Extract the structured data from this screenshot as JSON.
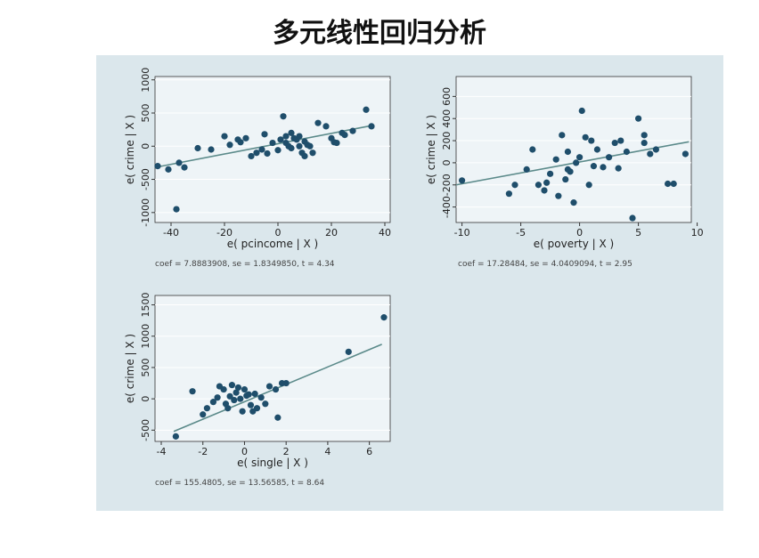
{
  "title": "多元线性回归分析",
  "colors": {
    "panel_bg": "#dbe7ec",
    "plot_bg": "#eef4f7",
    "point": "#1f4e6b",
    "fit_line": "#5b8a8a",
    "grid": "#ffffff",
    "axis": "#333333"
  },
  "chart_data": [
    {
      "type": "scatter",
      "xlabel": "e( pcincome | X )",
      "ylabel": "e( crime | X )",
      "note": "coef = 7.8883908, se = 1.8349850, t = 4.34",
      "xlim": [
        -46,
        42
      ],
      "ylim": [
        -1150,
        1050
      ],
      "xticks": [
        -40,
        -20,
        0,
        20,
        40
      ],
      "yticks": [
        -1000,
        -500,
        0,
        500,
        1000
      ],
      "ytick_labels": [
        "-1000",
        "-500",
        "0",
        "500",
        "1000"
      ],
      "grid": true,
      "fit": {
        "x": [
          -46,
          35
        ],
        "y": [
          -320,
          310
        ]
      },
      "points": {
        "x": [
          -45,
          -41,
          -38,
          -37,
          -35,
          -30,
          -25,
          -20,
          -18,
          -15,
          -14,
          -12,
          -10,
          -8,
          -6,
          -5,
          -4,
          -2,
          0,
          1,
          2,
          3,
          3,
          4,
          5,
          5,
          6,
          7,
          8,
          8,
          9,
          10,
          10,
          11,
          12,
          13,
          15,
          18,
          20,
          21,
          22,
          24,
          25,
          28,
          33,
          35
        ],
        "y": [
          -300,
          -350,
          -950,
          -250,
          -320,
          -30,
          -50,
          150,
          20,
          100,
          60,
          120,
          -150,
          -100,
          -50,
          180,
          -110,
          50,
          -60,
          100,
          450,
          50,
          150,
          0,
          200,
          -30,
          120,
          100,
          0,
          150,
          -100,
          70,
          -150,
          20,
          0,
          -100,
          350,
          300,
          120,
          60,
          50,
          200,
          170,
          230,
          550,
          300
        ]
      }
    },
    {
      "type": "scatter",
      "xlabel": "e( poverty | X )",
      "ylabel": "e( crime | X )",
      "note": "coef = 17.28484, se = 4.0409094, t = 2.95",
      "xlim": [
        -10.5,
        9.5
      ],
      "ylim": [
        -540,
        780
      ],
      "xticks": [
        -10,
        -5,
        0,
        5,
        10
      ],
      "yticks": [
        -400,
        -200,
        0,
        200,
        400,
        600
      ],
      "ytick_labels": [
        "-400",
        "-200",
        "0",
        "200",
        "400",
        "600"
      ],
      "grid": true,
      "fit": {
        "x": [
          -10.5,
          9.3
        ],
        "y": [
          -200,
          190
        ]
      },
      "points": {
        "x": [
          -10,
          -6,
          -5.5,
          -4.5,
          -4,
          -3.5,
          -3,
          -2.8,
          -2.5,
          -2,
          -1.8,
          -1.5,
          -1.2,
          -1,
          -1,
          -0.8,
          -0.5,
          -0.3,
          0,
          0.2,
          0.5,
          0.8,
          1,
          1.2,
          1.5,
          2,
          2.5,
          3,
          3.3,
          3.5,
          4,
          4.5,
          5,
          5.5,
          5.5,
          6,
          6.5,
          7.5,
          8,
          9
        ],
        "y": [
          -160,
          -280,
          -200,
          -60,
          120,
          -200,
          -250,
          -180,
          -100,
          30,
          -300,
          250,
          -150,
          -60,
          100,
          -80,
          -360,
          0,
          50,
          470,
          230,
          -200,
          200,
          -30,
          120,
          -40,
          50,
          180,
          -50,
          200,
          100,
          -500,
          400,
          250,
          180,
          80,
          120,
          -190,
          -190,
          80
        ]
      }
    },
    {
      "type": "scatter",
      "xlabel": "e( single | X )",
      "ylabel": "e( crime | X )",
      "note": "coef = 155.4805, se = 13.56585, t = 8.64",
      "xlim": [
        -4.3,
        7
      ],
      "ylim": [
        -680,
        1650
      ],
      "xticks": [
        -4,
        -2,
        0,
        2,
        4,
        6
      ],
      "yticks": [
        -500,
        0,
        500,
        1000,
        1500
      ],
      "ytick_labels": [
        "-500",
        "0",
        "500",
        "1000",
        "1500"
      ],
      "grid": true,
      "fit": {
        "x": [
          -3.4,
          6.6
        ],
        "y": [
          -520,
          870
        ]
      },
      "points": {
        "x": [
          -3.3,
          -2.5,
          -2,
          -1.8,
          -1.5,
          -1.3,
          -1.2,
          -1,
          -0.9,
          -0.8,
          -0.7,
          -0.6,
          -0.5,
          -0.4,
          -0.3,
          -0.2,
          -0.1,
          0,
          0.1,
          0.2,
          0.3,
          0.4,
          0.5,
          0.6,
          0.8,
          1,
          1.2,
          1.5,
          1.6,
          1.8,
          2,
          5,
          6.7
        ],
        "y": [
          -600,
          120,
          -250,
          -150,
          -50,
          20,
          200,
          150,
          -80,
          -150,
          40,
          220,
          -20,
          100,
          180,
          0,
          -200,
          150,
          50,
          70,
          -100,
          -200,
          80,
          -150,
          20,
          -80,
          200,
          150,
          -300,
          250,
          250,
          750,
          1300
        ]
      }
    }
  ]
}
